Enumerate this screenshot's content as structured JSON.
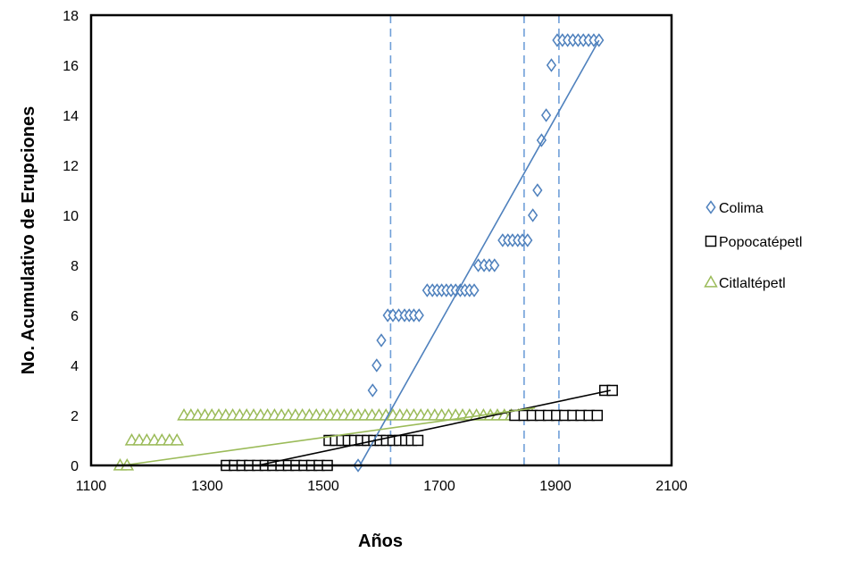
{
  "chart_data": {
    "type": "scatter",
    "xlabel": "Años",
    "ylabel": "No. Acumulativo de Erupciones",
    "xlim": [
      1100,
      2100
    ],
    "ylim": [
      0,
      18
    ],
    "xticks": [
      1100,
      1300,
      1500,
      1700,
      1900,
      2100
    ],
    "yticks": [
      0,
      2,
      4,
      6,
      8,
      10,
      12,
      14,
      16,
      18
    ],
    "grid": false,
    "legend_position": "right",
    "vlines": [
      1616,
      1846,
      1906
    ],
    "series": [
      {
        "name": "Colima",
        "marker": "diamond",
        "color": "#4f81bd",
        "points": [
          [
            1560,
            0
          ],
          [
            1585,
            3
          ],
          [
            1592,
            4
          ],
          [
            1600,
            5
          ],
          [
            1611,
            6
          ],
          [
            1620,
            6
          ],
          [
            1630,
            6
          ],
          [
            1640,
            6
          ],
          [
            1648,
            6
          ],
          [
            1656,
            6
          ],
          [
            1665,
            6
          ],
          [
            1679,
            7
          ],
          [
            1688,
            7
          ],
          [
            1696,
            7
          ],
          [
            1704,
            7
          ],
          [
            1712,
            7
          ],
          [
            1720,
            7
          ],
          [
            1728,
            7
          ],
          [
            1736,
            7
          ],
          [
            1744,
            7
          ],
          [
            1752,
            7
          ],
          [
            1760,
            7
          ],
          [
            1767,
            8
          ],
          [
            1777,
            8
          ],
          [
            1786,
            8
          ],
          [
            1795,
            8
          ],
          [
            1809,
            9
          ],
          [
            1818,
            9
          ],
          [
            1826,
            9
          ],
          [
            1835,
            9
          ],
          [
            1843,
            9
          ],
          [
            1852,
            9
          ],
          [
            1861,
            10
          ],
          [
            1869,
            11
          ],
          [
            1876,
            13
          ],
          [
            1884,
            14
          ],
          [
            1893,
            16
          ],
          [
            1903,
            17
          ],
          [
            1912,
            17
          ],
          [
            1921,
            17
          ],
          [
            1930,
            17
          ],
          [
            1939,
            17
          ],
          [
            1948,
            17
          ],
          [
            1957,
            17
          ],
          [
            1966,
            17
          ],
          [
            1975,
            17
          ]
        ],
        "trendline": [
          [
            1563,
            0
          ],
          [
            1975,
            17
          ]
        ]
      },
      {
        "name": "Popocatépetl",
        "marker": "square",
        "color": "#000000",
        "points": [
          [
            1333,
            0
          ],
          [
            1347,
            0
          ],
          [
            1360,
            0
          ],
          [
            1373,
            0
          ],
          [
            1387,
            0
          ],
          [
            1400,
            0
          ],
          [
            1413,
            0
          ],
          [
            1427,
            0
          ],
          [
            1440,
            0
          ],
          [
            1453,
            0
          ],
          [
            1467,
            0
          ],
          [
            1480,
            0
          ],
          [
            1493,
            0
          ],
          [
            1507,
            0
          ],
          [
            1510,
            1
          ],
          [
            1521,
            1
          ],
          [
            1532,
            1
          ],
          [
            1543,
            1
          ],
          [
            1554,
            1
          ],
          [
            1565,
            1
          ],
          [
            1576,
            1
          ],
          [
            1587,
            1
          ],
          [
            1598,
            1
          ],
          [
            1609,
            1
          ],
          [
            1620,
            1
          ],
          [
            1631,
            1
          ],
          [
            1642,
            1
          ],
          [
            1652,
            1
          ],
          [
            1663,
            1
          ],
          [
            1830,
            2
          ],
          [
            1846,
            2
          ],
          [
            1860,
            2
          ],
          [
            1874,
            2
          ],
          [
            1888,
            2
          ],
          [
            1902,
            2
          ],
          [
            1916,
            2
          ],
          [
            1930,
            2
          ],
          [
            1944,
            2
          ],
          [
            1958,
            2
          ],
          [
            1972,
            2
          ],
          [
            1985,
            3
          ],
          [
            1998,
            3
          ]
        ],
        "trendline": [
          [
            1387,
            0
          ],
          [
            1995,
            3
          ]
        ]
      },
      {
        "name": "Citlaltépetl",
        "marker": "triangle",
        "color": "#9bbb59",
        "points": [
          [
            1150,
            0
          ],
          [
            1162,
            0
          ],
          [
            1170,
            1
          ],
          [
            1183,
            1
          ],
          [
            1196,
            1
          ],
          [
            1209,
            1
          ],
          [
            1222,
            1
          ],
          [
            1235,
            1
          ],
          [
            1248,
            1
          ],
          [
            1260,
            2
          ],
          [
            1272,
            2
          ],
          [
            1284,
            2
          ],
          [
            1296,
            2
          ],
          [
            1308,
            2
          ],
          [
            1320,
            2
          ],
          [
            1332,
            2
          ],
          [
            1344,
            2
          ],
          [
            1356,
            2
          ],
          [
            1368,
            2
          ],
          [
            1380,
            2
          ],
          [
            1392,
            2
          ],
          [
            1404,
            2
          ],
          [
            1416,
            2
          ],
          [
            1428,
            2
          ],
          [
            1440,
            2
          ],
          [
            1452,
            2
          ],
          [
            1464,
            2
          ],
          [
            1476,
            2
          ],
          [
            1488,
            2
          ],
          [
            1500,
            2
          ],
          [
            1512,
            2
          ],
          [
            1524,
            2
          ],
          [
            1536,
            2
          ],
          [
            1548,
            2
          ],
          [
            1560,
            2
          ],
          [
            1572,
            2
          ],
          [
            1584,
            2
          ],
          [
            1596,
            2
          ],
          [
            1608,
            2
          ],
          [
            1620,
            2
          ],
          [
            1632,
            2
          ],
          [
            1644,
            2
          ],
          [
            1656,
            2
          ],
          [
            1668,
            2
          ],
          [
            1680,
            2
          ],
          [
            1692,
            2
          ],
          [
            1704,
            2
          ],
          [
            1716,
            2
          ],
          [
            1728,
            2
          ],
          [
            1740,
            2
          ],
          [
            1752,
            2
          ],
          [
            1764,
            2
          ],
          [
            1776,
            2
          ],
          [
            1788,
            2
          ],
          [
            1800,
            2
          ],
          [
            1812,
            2
          ],
          [
            1824,
            2
          ],
          [
            1836,
            2
          ],
          [
            1848,
            2
          ],
          [
            1860,
            2
          ]
        ],
        "trendline": [
          [
            1155,
            0
          ],
          [
            1865,
            2.3
          ]
        ]
      }
    ]
  }
}
